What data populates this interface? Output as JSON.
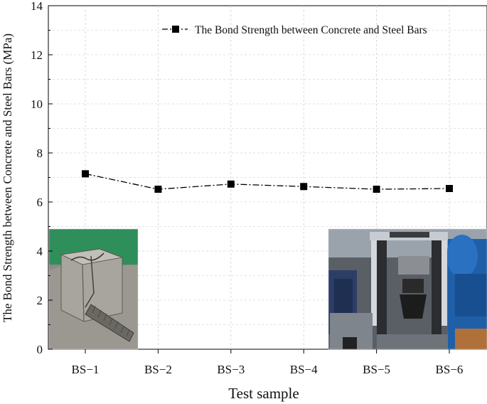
{
  "chart_data": {
    "type": "line",
    "xlabel": "Test sample",
    "ylabel": "The Bond Strength between Concrete and Steel Bars (MPa)",
    "categories": [
      "BS−1",
      "BS−2",
      "BS−3",
      "BS−4",
      "BS−5",
      "BS−6"
    ],
    "yticks": [
      "0",
      "2",
      "4",
      "6",
      "8",
      "10",
      "12",
      "14"
    ],
    "ylim": [
      0,
      14
    ],
    "grid": true,
    "legend_position": "top-right",
    "series": [
      {
        "name": "The Bond Strength between Concrete and Steel Bars",
        "values": [
          7.15,
          6.52,
          6.73,
          6.63,
          6.52,
          6.55
        ],
        "marker": "square",
        "line_style": "dash-dot",
        "color": "#000000"
      }
    ]
  },
  "photos": {
    "left": {
      "icon": "concrete-specimen-photo"
    },
    "right": {
      "icon": "testing-machine-photo"
    }
  }
}
